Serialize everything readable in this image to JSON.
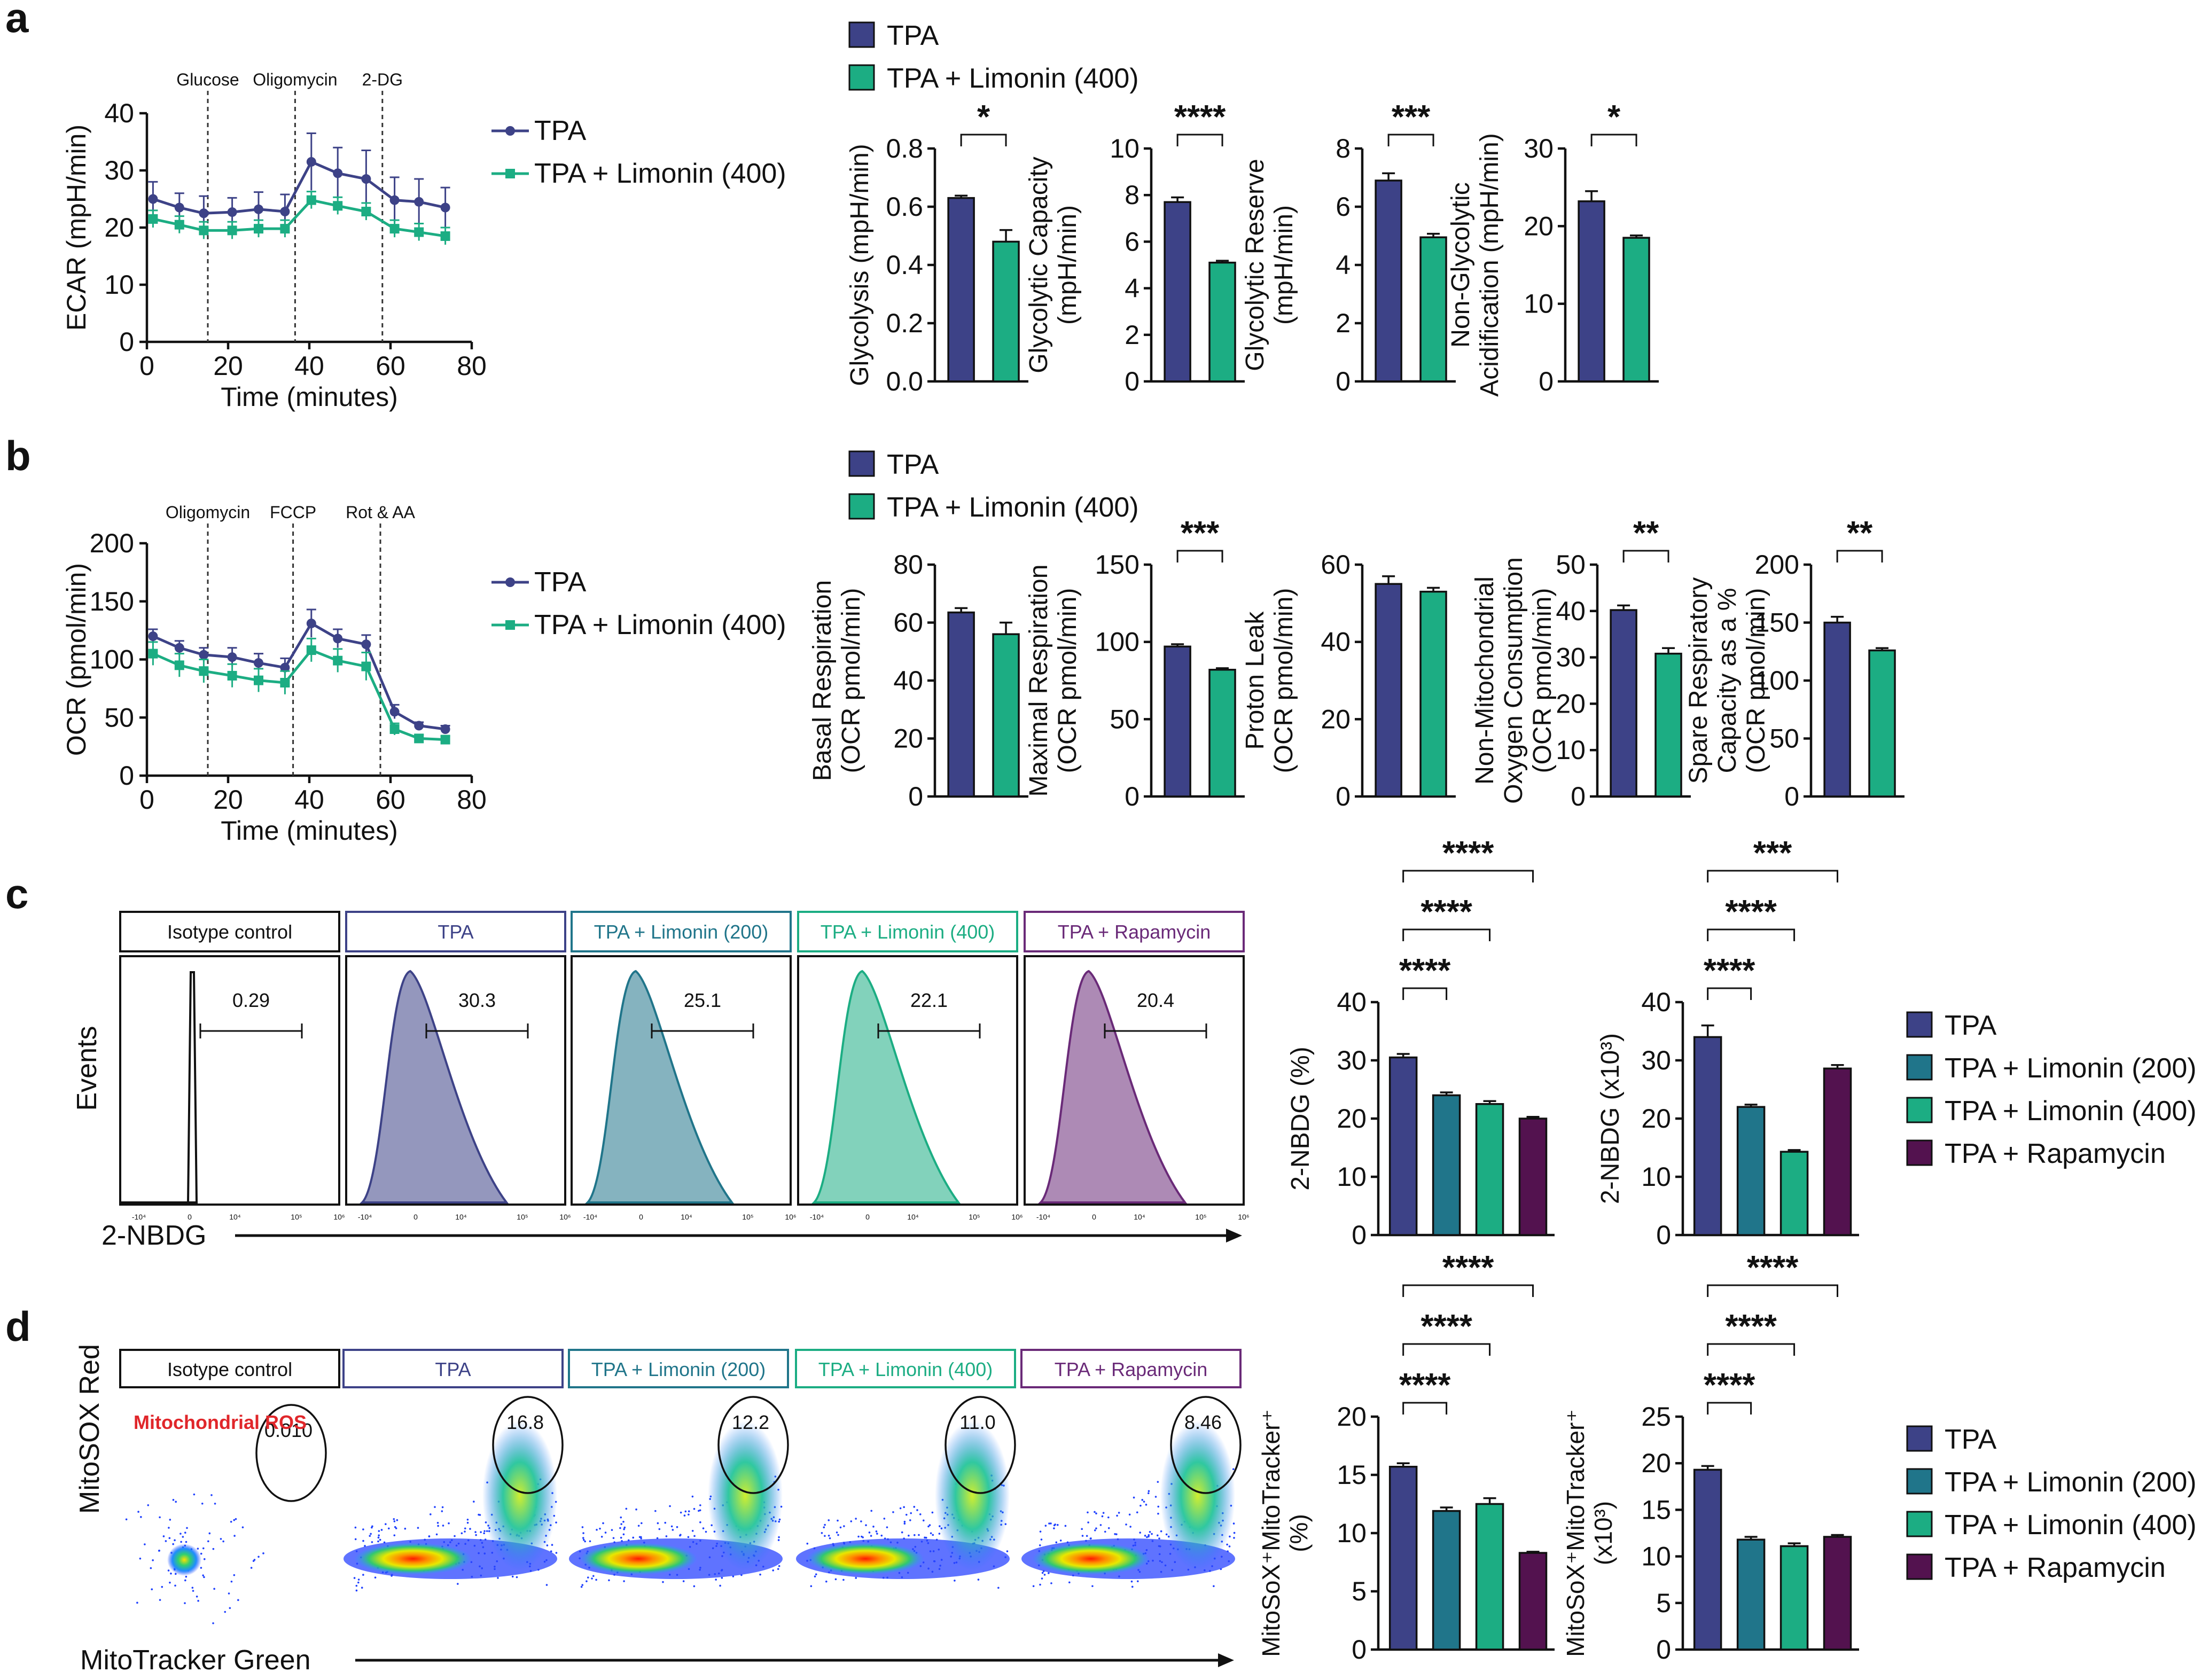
{
  "panels": [
    "a",
    "b",
    "c",
    "d"
  ],
  "colors": {
    "tpa": "#3d4287",
    "lim200": "#20758a",
    "lim400": "#1cad83",
    "rapa": "#53124f",
    "red": "#e0262a"
  },
  "chart_data": [
    {
      "id": "a-ecar",
      "type": "line",
      "title": "",
      "xlabel": "Time (minutes)",
      "ylabel": "ECAR (mpH/min)",
      "xlim": [
        0,
        80
      ],
      "ylim": [
        0,
        40
      ],
      "xticks": [
        0,
        20,
        40,
        60,
        80
      ],
      "yticks": [
        0,
        10,
        20,
        30,
        40
      ],
      "injections": [
        {
          "label": "Glucose",
          "x": 15
        },
        {
          "label": "Oligomycin",
          "x": 36.5
        },
        {
          "label": "2-DG",
          "x": 58
        }
      ],
      "series": [
        {
          "name": "TPA",
          "color": "#3d4287",
          "marker": "circle",
          "x": [
            1.5,
            8,
            14,
            21,
            27.5,
            34,
            40.5,
            47,
            54,
            61,
            67,
            73.5
          ],
          "y": [
            25,
            23.5,
            22.5,
            22.7,
            23.2,
            22.8,
            31.5,
            29.5,
            28.5,
            24.8,
            24.5,
            23.5
          ],
          "err": [
            3,
            2.5,
            3,
            2.5,
            3,
            3,
            5,
            4.5,
            5,
            4,
            4,
            3.5
          ]
        },
        {
          "name": "TPA + Limonin (400)",
          "color": "#1cad83",
          "marker": "square",
          "x": [
            1.5,
            8,
            14,
            21,
            27.5,
            34,
            40.5,
            47,
            54,
            61,
            67,
            73.5
          ],
          "y": [
            21.5,
            20.5,
            19.5,
            19.5,
            19.8,
            19.8,
            24.8,
            23.8,
            22.8,
            19.8,
            19.2,
            18.5
          ],
          "err": [
            1.5,
            1.5,
            1.5,
            1.5,
            1.5,
            1.5,
            1.5,
            1.5,
            1.5,
            1.5,
            1.5,
            1.5
          ]
        }
      ]
    },
    {
      "id": "b-ocr",
      "type": "line",
      "title": "",
      "xlabel": "Time (minutes)",
      "ylabel": "OCR (pmol/min)",
      "xlim": [
        0,
        80
      ],
      "ylim": [
        0,
        200
      ],
      "xticks": [
        0,
        20,
        40,
        60,
        80
      ],
      "yticks": [
        0,
        50,
        100,
        150,
        200
      ],
      "injections": [
        {
          "label": "Oligomycin",
          "x": 15
        },
        {
          "label": "FCCP",
          "x": 36
        },
        {
          "label": "Rot & AA",
          "x": 57.5
        }
      ],
      "series": [
        {
          "name": "TPA",
          "color": "#3d4287",
          "marker": "circle",
          "x": [
            1.5,
            8,
            14,
            21,
            27.5,
            34,
            40.5,
            47,
            54,
            61,
            67,
            73.5
          ],
          "y": [
            120,
            110,
            104,
            102,
            97,
            93,
            131,
            118,
            113,
            55,
            43,
            40
          ],
          "err": [
            6,
            6,
            6,
            8,
            8,
            8,
            12,
            8,
            8,
            6,
            3,
            3
          ]
        },
        {
          "name": "TPA + Limonin (400)",
          "color": "#1cad83",
          "marker": "square",
          "x": [
            1.5,
            8,
            14,
            21,
            27.5,
            34,
            40.5,
            47,
            54,
            61,
            67,
            73.5
          ],
          "y": [
            105,
            95,
            90,
            86,
            82,
            80,
            108,
            99,
            94,
            40,
            32,
            31
          ],
          "err": [
            10,
            10,
            10,
            10,
            10,
            10,
            10,
            10,
            12,
            5,
            3,
            3
          ]
        }
      ]
    },
    {
      "id": "a-glycolysis",
      "type": "bar",
      "ylabel": [
        "Glycolysis (mpH/min)"
      ],
      "ylim": [
        0,
        0.8
      ],
      "yticks": [
        "0.0",
        "0.2",
        "0.4",
        "0.6",
        "0.8"
      ],
      "categories": [
        "TPA",
        "TPA + Limonin (400)"
      ],
      "values": [
        0.63,
        0.48
      ],
      "errors": [
        0.008,
        0.04
      ],
      "significance": [
        {
          "from": 0,
          "to": 1,
          "label": "*"
        }
      ]
    },
    {
      "id": "a-capacity",
      "type": "bar",
      "ylabel": [
        "Glycolytic Capacity",
        "(mpH/min)"
      ],
      "ylim": [
        0,
        10
      ],
      "yticks": [
        "0",
        "2",
        "4",
        "6",
        "8",
        "10"
      ],
      "categories": [
        "TPA",
        "TPA + Limonin (400)"
      ],
      "values": [
        7.7,
        5.1
      ],
      "errors": [
        0.2,
        0.08
      ],
      "significance": [
        {
          "from": 0,
          "to": 1,
          "label": "****"
        }
      ]
    },
    {
      "id": "a-reserve",
      "type": "bar",
      "ylabel": [
        "Glycolytic Reserve",
        "(mpH/min)"
      ],
      "ylim": [
        0,
        8
      ],
      "yticks": [
        "0",
        "2",
        "4",
        "6",
        "8"
      ],
      "categories": [
        "TPA",
        "TPA + Limonin (400)"
      ],
      "values": [
        6.9,
        4.95
      ],
      "errors": [
        0.25,
        0.12
      ],
      "significance": [
        {
          "from": 0,
          "to": 1,
          "label": "***"
        }
      ]
    },
    {
      "id": "a-nonglyco",
      "type": "bar",
      "ylabel": [
        "Non-Glycolytic",
        "Acidification (mpH/min)"
      ],
      "ylim": [
        0,
        30
      ],
      "yticks": [
        "0",
        "10",
        "20",
        "30"
      ],
      "categories": [
        "TPA",
        "TPA + Limonin (400)"
      ],
      "values": [
        23.2,
        18.5
      ],
      "errors": [
        1.3,
        0.3
      ],
      "significance": [
        {
          "from": 0,
          "to": 1,
          "label": "*"
        }
      ]
    },
    {
      "id": "b-basal",
      "type": "bar",
      "ylabel": [
        "Basal Respiration",
        "(OCR pmol/min)"
      ],
      "ylim": [
        0,
        80
      ],
      "yticks": [
        "0",
        "20",
        "40",
        "60",
        "80"
      ],
      "categories": [
        "TPA",
        "TPA + Limonin (400)"
      ],
      "values": [
        63.5,
        56
      ],
      "errors": [
        1.5,
        4
      ],
      "significance": []
    },
    {
      "id": "b-maximal",
      "type": "bar",
      "ylabel": [
        "Maximal Respiration",
        "(OCR pmol/min)"
      ],
      "ylim": [
        0,
        150
      ],
      "yticks": [
        "0",
        "50",
        "100",
        "150"
      ],
      "categories": [
        "TPA",
        "TPA + Limonin (400)"
      ],
      "values": [
        97,
        82
      ],
      "errors": [
        1.5,
        1
      ],
      "significance": [
        {
          "from": 0,
          "to": 1,
          "label": "***"
        }
      ]
    },
    {
      "id": "b-leak",
      "type": "bar",
      "ylabel": [
        "Proton Leak",
        "(OCR pmol/min)"
      ],
      "ylim": [
        0,
        60
      ],
      "yticks": [
        "0",
        "20",
        "40",
        "60"
      ],
      "categories": [
        "TPA",
        "TPA + Limonin (400)"
      ],
      "values": [
        55,
        53
      ],
      "errors": [
        2,
        1
      ],
      "significance": []
    },
    {
      "id": "b-nonmito",
      "type": "bar",
      "ylabel": [
        "Non-Mitochondrial",
        "Oxygen Consumption",
        "(OCR pmol/min)"
      ],
      "ylim": [
        0,
        50
      ],
      "yticks": [
        "0",
        "10",
        "20",
        "30",
        "40",
        "50"
      ],
      "categories": [
        "TPA",
        "TPA + Limonin (400)"
      ],
      "values": [
        40.2,
        30.8
      ],
      "errors": [
        1,
        1.2
      ],
      "significance": [
        {
          "from": 0,
          "to": 1,
          "label": "**"
        }
      ]
    },
    {
      "id": "b-spare",
      "type": "bar",
      "ylabel": [
        "Spare Respiratory",
        "Capacity as a %",
        "(OCR pmol/min)"
      ],
      "ylim": [
        0,
        200
      ],
      "yticks": [
        "0",
        "50",
        "100",
        "150",
        "200"
      ],
      "categories": [
        "TPA",
        "TPA + Limonin (400)"
      ],
      "values": [
        150,
        126
      ],
      "errors": [
        5,
        2
      ],
      "significance": [
        {
          "from": 0,
          "to": 1,
          "label": "**"
        }
      ]
    },
    {
      "id": "c-nbdg-pct",
      "type": "bar",
      "ylabel": [
        "2-NBDG (%)"
      ],
      "ylim": [
        0,
        40
      ],
      "yticks": [
        "0",
        "10",
        "20",
        "30",
        "40"
      ],
      "categories": [
        "TPA",
        "TPA + Limonin (200)",
        "TPA + Limonin (400)",
        "TPA + Rapamycin"
      ],
      "values": [
        30.5,
        24,
        22.5,
        20
      ],
      "errors": [
        0.6,
        0.5,
        0.5,
        0.3
      ],
      "significance": [
        {
          "from": 0,
          "to": 1,
          "label": "****"
        },
        {
          "from": 0,
          "to": 2,
          "label": "****"
        },
        {
          "from": 0,
          "to": 3,
          "label": "****"
        }
      ]
    },
    {
      "id": "c-nbdg-count",
      "type": "bar",
      "ylabel": [
        "2-NBDG (x10³)"
      ],
      "ylim": [
        0,
        40
      ],
      "yticks": [
        "0",
        "10",
        "20",
        "30",
        "40"
      ],
      "categories": [
        "TPA",
        "TPA + Limonin (200)",
        "TPA + Limonin (400)",
        "TPA + Rapamycin"
      ],
      "values": [
        34,
        22,
        14.3,
        28.6
      ],
      "errors": [
        2,
        0.4,
        0.3,
        0.6
      ],
      "significance": [
        {
          "from": 0,
          "to": 1,
          "label": "****"
        },
        {
          "from": 0,
          "to": 2,
          "label": "****"
        },
        {
          "from": 0,
          "to": 3,
          "label": "***"
        }
      ]
    },
    {
      "id": "d-mito-pct",
      "type": "bar",
      "ylabel": [
        "MitoSoX⁺MitoTracker⁺",
        "(%)"
      ],
      "ylim": [
        0,
        20
      ],
      "yticks": [
        "0",
        "5",
        "10",
        "15",
        "20"
      ],
      "categories": [
        "TPA",
        "TPA + Limonin (200)",
        "TPA + Limonin (400)",
        "TPA + Rapamycin"
      ],
      "values": [
        15.7,
        11.9,
        12.5,
        8.3
      ],
      "errors": [
        0.3,
        0.3,
        0.5,
        0.1
      ],
      "significance": [
        {
          "from": 0,
          "to": 1,
          "label": "****"
        },
        {
          "from": 0,
          "to": 2,
          "label": "****"
        },
        {
          "from": 0,
          "to": 3,
          "label": "****"
        }
      ]
    },
    {
      "id": "d-mito-count",
      "type": "bar",
      "ylabel": [
        "MitoSoX⁺MitoTracker⁺",
        "(x10³)"
      ],
      "ylim": [
        0,
        25
      ],
      "yticks": [
        "0",
        "5",
        "10",
        "15",
        "20",
        "25"
      ],
      "categories": [
        "TPA",
        "TPA + Limonin (200)",
        "TPA + Limonin (400)",
        "TPA + Rapamycin"
      ],
      "values": [
        19.3,
        11.8,
        11.1,
        12.1
      ],
      "errors": [
        0.4,
        0.3,
        0.3,
        0.2
      ],
      "significance": [
        {
          "from": 0,
          "to": 1,
          "label": "****"
        },
        {
          "from": 0,
          "to": 2,
          "label": "****"
        },
        {
          "from": 0,
          "to": 3,
          "label": "****"
        }
      ]
    }
  ],
  "legend2": [
    "TPA",
    "TPA + Limonin (400)"
  ],
  "legend4": [
    "TPA",
    "TPA + Limonin (200)",
    "TPA + Limonin (400)",
    "TPA + Rapamycin"
  ],
  "flow_c": {
    "ylabel": "Events",
    "xlabel": "2-NBDG",
    "ticks": [
      "-10⁴",
      "0",
      "10⁴",
      "10⁵",
      "10⁶"
    ],
    "panels": [
      {
        "title": "Isotype control",
        "value": "0.29",
        "color": "#111111"
      },
      {
        "title": "TPA",
        "value": "30.3",
        "color": "#3d4287"
      },
      {
        "title": "TPA + Limonin (200)",
        "value": "25.1",
        "color": "#20758a"
      },
      {
        "title": "TPA + Limonin (400)",
        "value": "22.1",
        "color": "#1cad83"
      },
      {
        "title": "TPA + Rapamycin",
        "value": "20.4",
        "color": "#6a2a78"
      }
    ]
  },
  "flow_d": {
    "ylabel": "MitoSOX Red",
    "xlabel": "MitoTracker Green",
    "note": "Mitochondrial ROS",
    "panels": [
      {
        "title": "Isotype control",
        "value": "0.010",
        "color": "#111111"
      },
      {
        "title": "TPA",
        "value": "16.8",
        "color": "#3d4287"
      },
      {
        "title": "TPA + Limonin (200)",
        "value": "12.2",
        "color": "#20758a"
      },
      {
        "title": "TPA + Limonin (400)",
        "value": "11.0",
        "color": "#1cad83"
      },
      {
        "title": "TPA + Rapamycin",
        "value": "8.46",
        "color": "#6a2a78"
      }
    ]
  }
}
